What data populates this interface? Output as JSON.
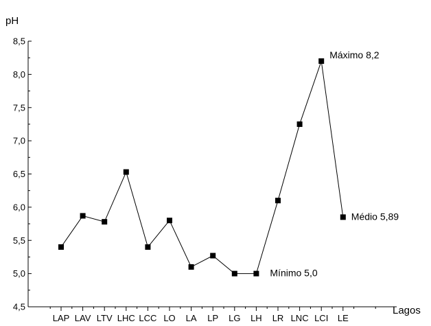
{
  "chart_data": {
    "type": "line",
    "xlabel": "Lagos",
    "ylabel": "pH",
    "categories": [
      "LAP",
      "LAV",
      "LTV",
      "LHC",
      "LCC",
      "LO",
      "LA",
      "LP",
      "LG",
      "LH",
      "LR",
      "LNC",
      "LCI",
      "LE"
    ],
    "values": [
      5.4,
      5.87,
      5.78,
      6.53,
      5.4,
      5.8,
      5.1,
      5.27,
      5.0,
      5.0,
      6.1,
      7.25,
      8.2,
      5.85
    ],
    "ylim": [
      4.5,
      8.5
    ],
    "yticks": [
      "4,5",
      "5,0",
      "5,5",
      "6,0",
      "6,5",
      "7,0",
      "7,5",
      "8,0",
      "8,5"
    ],
    "marker": "square",
    "line_color": "#000000",
    "grid": false,
    "legend": "none",
    "annotations": [
      {
        "text": "Máximo 8,2",
        "point": 12
      },
      {
        "text": "Mínimo 5,0",
        "point": 9
      },
      {
        "text": "Médio 5,89",
        "point": 13
      }
    ]
  }
}
